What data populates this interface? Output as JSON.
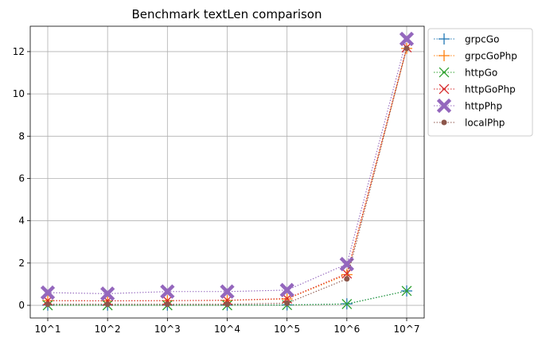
{
  "chart_data": {
    "type": "line",
    "title": "Benchmark textLen comparison",
    "xlabel": "",
    "ylabel": "",
    "categories": [
      "10^1",
      "10^2",
      "10^3",
      "10^4",
      "10^5",
      "10^6",
      "10^7"
    ],
    "ylim": [
      -0.6,
      13.2
    ],
    "yticks": [
      0,
      2,
      4,
      6,
      8,
      10,
      12
    ],
    "grid": true,
    "legend_position": "outside-right-top",
    "series": [
      {
        "name": "grpcGo",
        "color": "#1f77b4",
        "marker": "plus",
        "values": [
          0.01,
          0.01,
          0.01,
          0.01,
          0.02,
          0.07,
          0.68
        ]
      },
      {
        "name": "grpcGoPhp",
        "color": "#ff7f0e",
        "marker": "plus",
        "values": [
          0.22,
          0.21,
          0.22,
          0.23,
          0.3,
          1.45,
          12.15
        ]
      },
      {
        "name": "httpGo",
        "color": "#2ca02c",
        "marker": "x",
        "values": [
          0.0,
          0.0,
          0.0,
          0.0,
          0.01,
          0.06,
          0.68
        ]
      },
      {
        "name": "httpGoPhp",
        "color": "#d62728",
        "marker": "x",
        "values": [
          0.22,
          0.21,
          0.22,
          0.24,
          0.32,
          1.5,
          12.2
        ]
      },
      {
        "name": "httpPhp",
        "color": "#9467bd",
        "marker": "X",
        "values": [
          0.6,
          0.55,
          0.65,
          0.65,
          0.72,
          1.95,
          12.6
        ]
      },
      {
        "name": "localPhp",
        "color": "#8c564b",
        "marker": "dot",
        "values": [
          0.05,
          0.05,
          0.05,
          0.05,
          0.1,
          1.25,
          12.15
        ]
      }
    ]
  }
}
